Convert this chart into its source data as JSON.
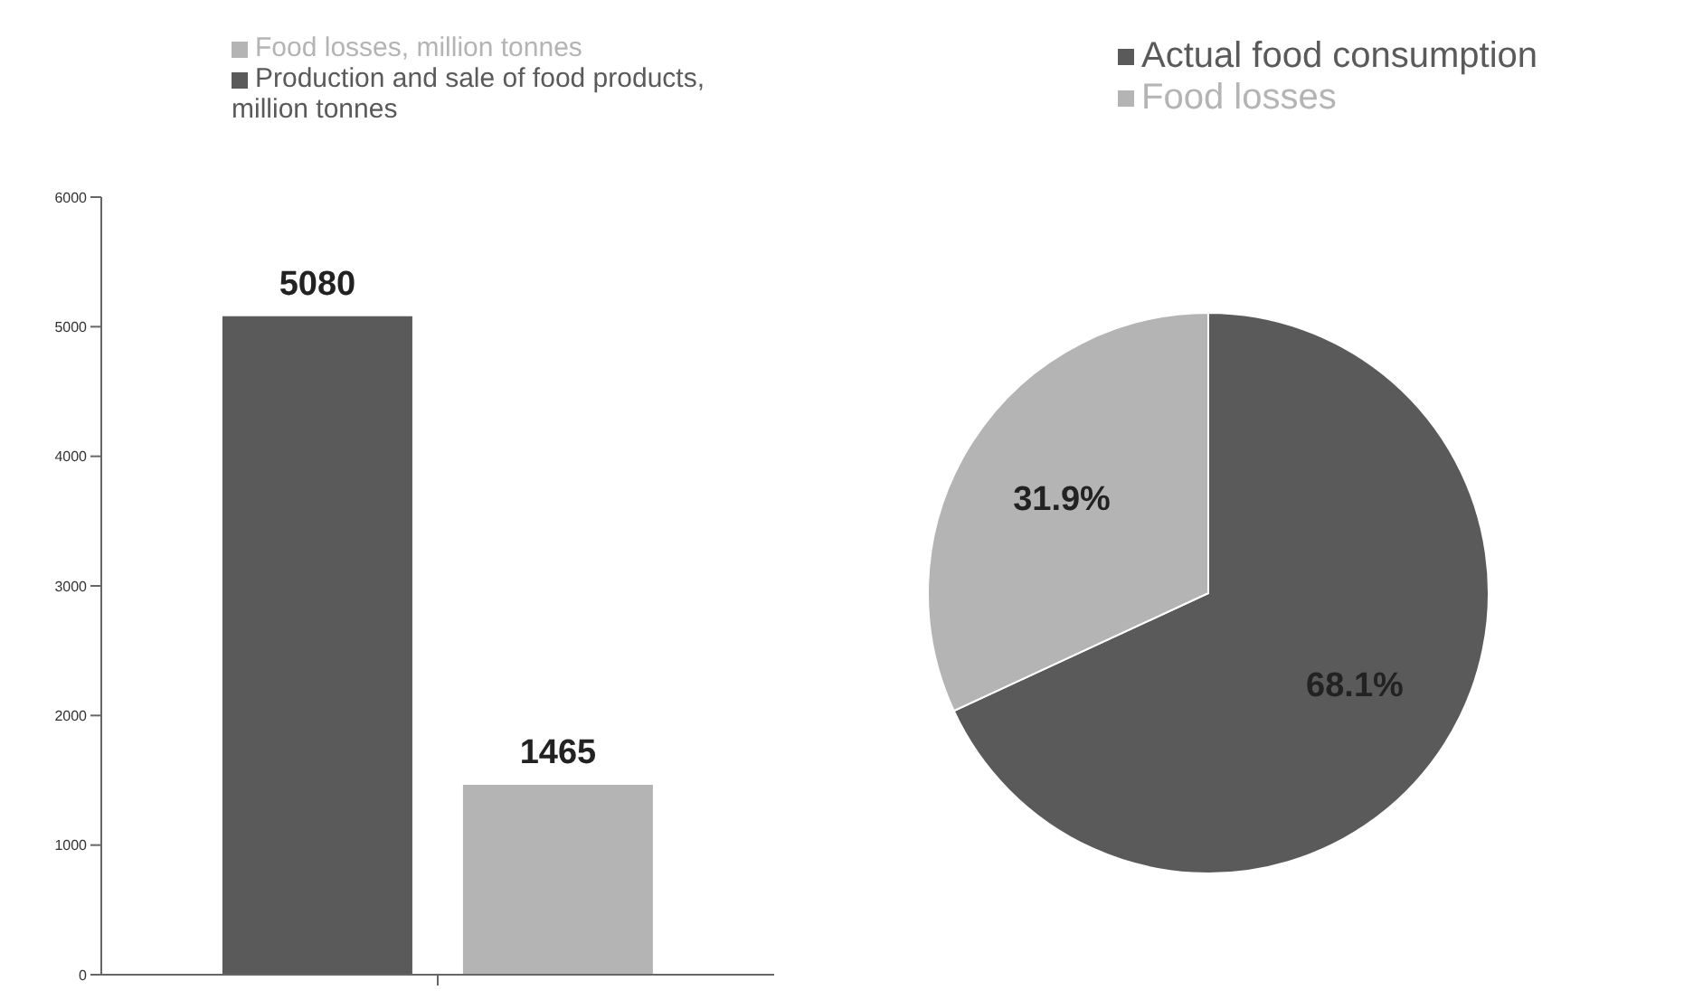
{
  "chart_data": [
    {
      "type": "bar",
      "categories": [
        null
      ],
      "series": [
        {
          "name": "Production and sale of food products, million tonnes",
          "color": "#5a5a5a",
          "values": [
            5080
          ]
        },
        {
          "name": "Food losses, million tonnes",
          "color": "#b4b4b4",
          "values": [
            1465
          ]
        }
      ],
      "ylim": [
        0,
        6000
      ],
      "yticks": [
        0,
        1000,
        2000,
        3000,
        4000,
        5000,
        6000
      ],
      "data_labels": true,
      "legend": "top",
      "grid": false
    },
    {
      "type": "pie",
      "categories": [
        "Actual food consumption",
        "Food losses"
      ],
      "values": [
        68.1,
        31.9
      ],
      "colors": [
        "#5a5a5a",
        "#b4b4b4"
      ],
      "value_labels": [
        "68.1%",
        "31.9%"
      ],
      "legend": "top right"
    }
  ]
}
